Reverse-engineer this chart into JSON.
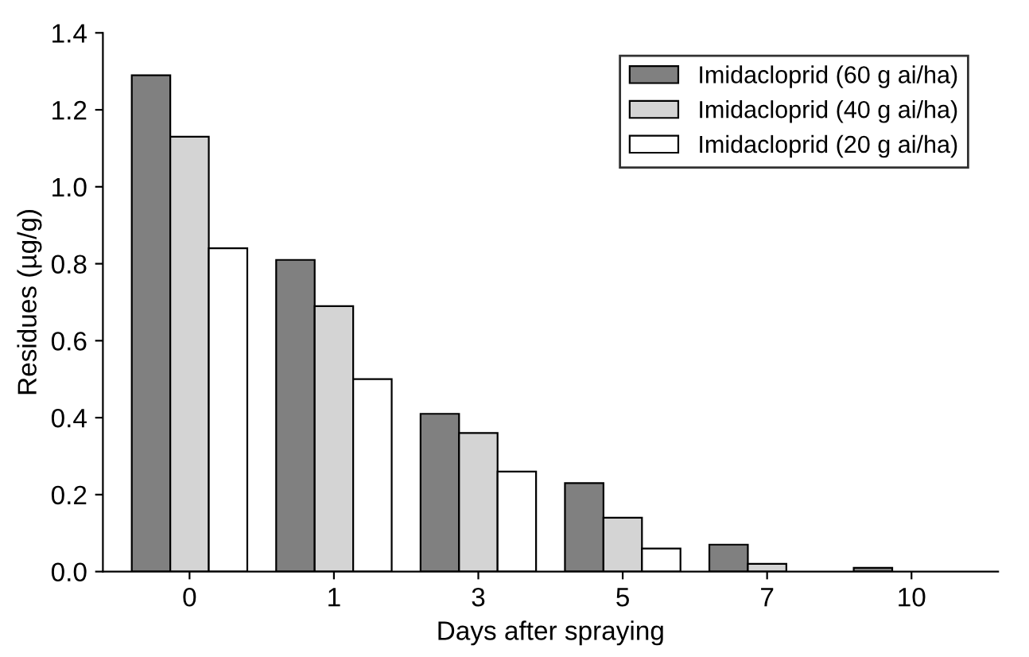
{
  "chart_data": {
    "type": "bar",
    "xlabel": "Days after spraying",
    "ylabel": "Residues (µg/g)",
    "categories": [
      "0",
      "1",
      "3",
      "5",
      "7",
      "10"
    ],
    "series": [
      {
        "name": "Imidacloprid (60 g ai/ha)",
        "color": "#808080",
        "values": [
          1.29,
          0.81,
          0.41,
          0.23,
          0.07,
          0.01
        ]
      },
      {
        "name": "Imidacloprid (40 g ai/ha)",
        "color": "#d4d4d4",
        "values": [
          1.13,
          0.69,
          0.36,
          0.14,
          0.02,
          null
        ]
      },
      {
        "name": "Imidacloprid (20 g ai/ha)",
        "color": "#ffffff",
        "values": [
          0.84,
          0.5,
          0.26,
          0.06,
          null,
          null
        ]
      }
    ],
    "ylim": [
      0,
      1.4
    ],
    "yticks": [
      {
        "value": 0,
        "label": "0.0"
      },
      0.2,
      0.4,
      0.6,
      0.8,
      {
        "value": 1,
        "label": "1.0"
      },
      1.2,
      1.4
    ],
    "grid": false,
    "legend": "top right"
  }
}
